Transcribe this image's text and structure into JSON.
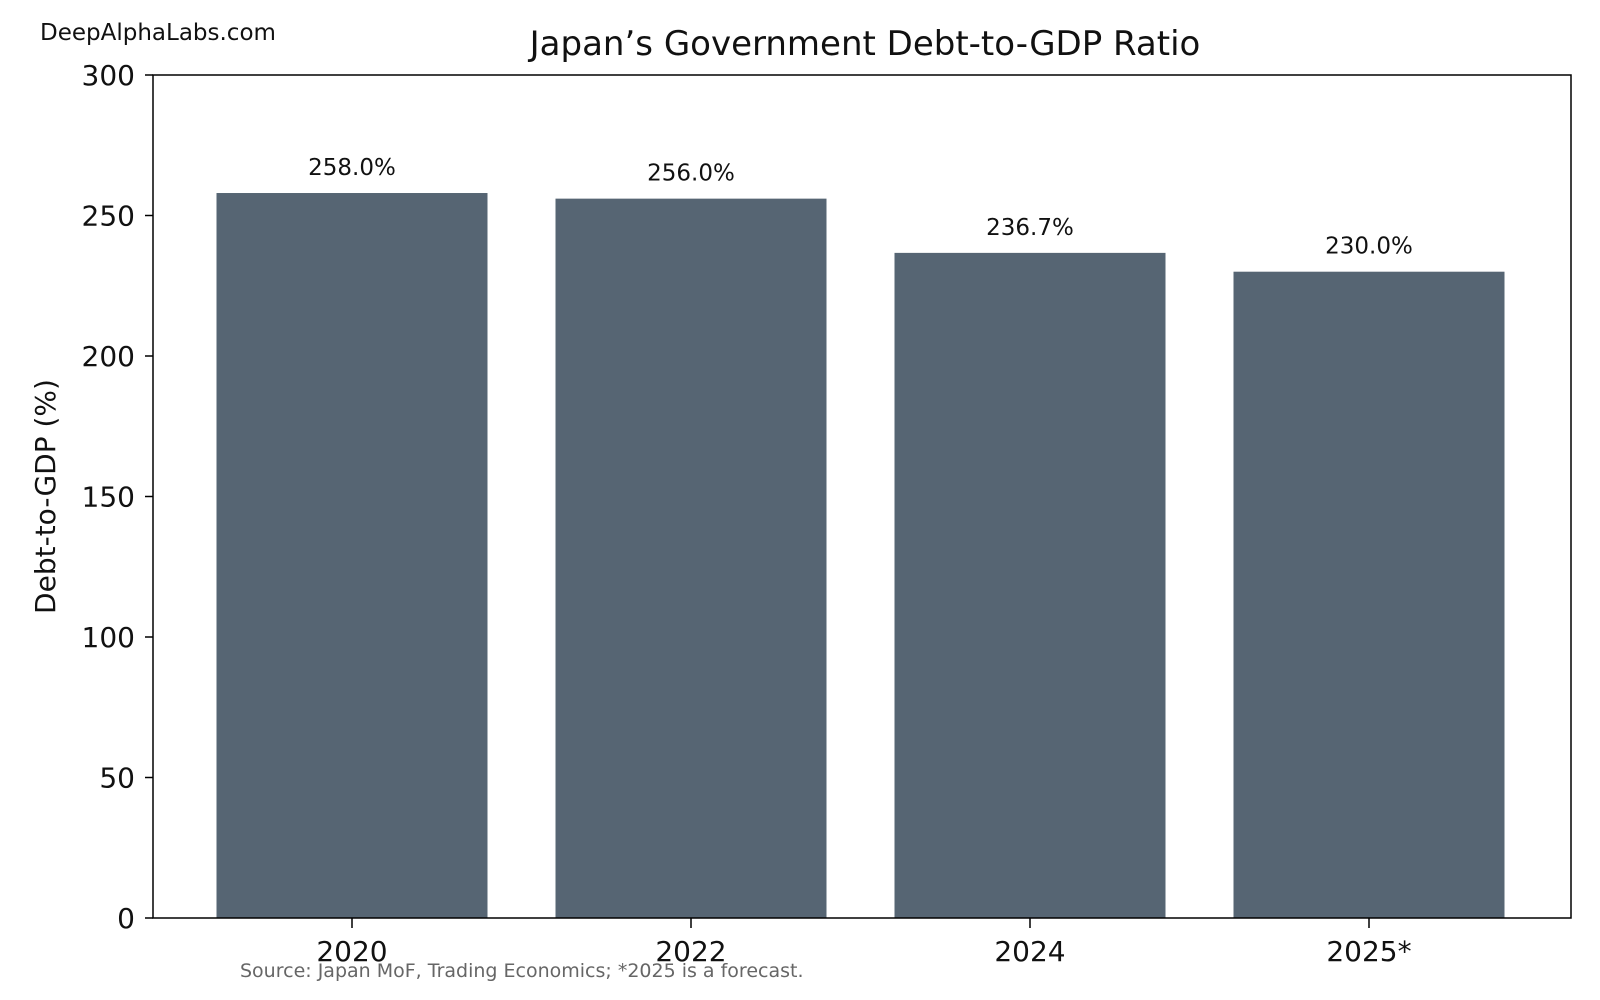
{
  "watermark": "DeepAlphaLabs.com",
  "source_note": "Source: Japan MoF, Trading Economics; *2025 is a forecast.",
  "chart_data": {
    "type": "bar",
    "title": "Japan’s Government Debt-to-GDP Ratio",
    "xlabel": "",
    "ylabel": "Debt-to-GDP (%)",
    "categories": [
      "2020",
      "2022",
      "2024",
      "2025*"
    ],
    "values": [
      258.0,
      256.0,
      236.7,
      230.0
    ],
    "data_labels": [
      "258.0%",
      "256.0%",
      "236.7%",
      "230.0%"
    ],
    "ylim": [
      0,
      300
    ],
    "yticks": [
      "0",
      "50",
      "100",
      "150",
      "200",
      "250",
      "300"
    ],
    "grid": false,
    "bar_color": "#566573"
  }
}
